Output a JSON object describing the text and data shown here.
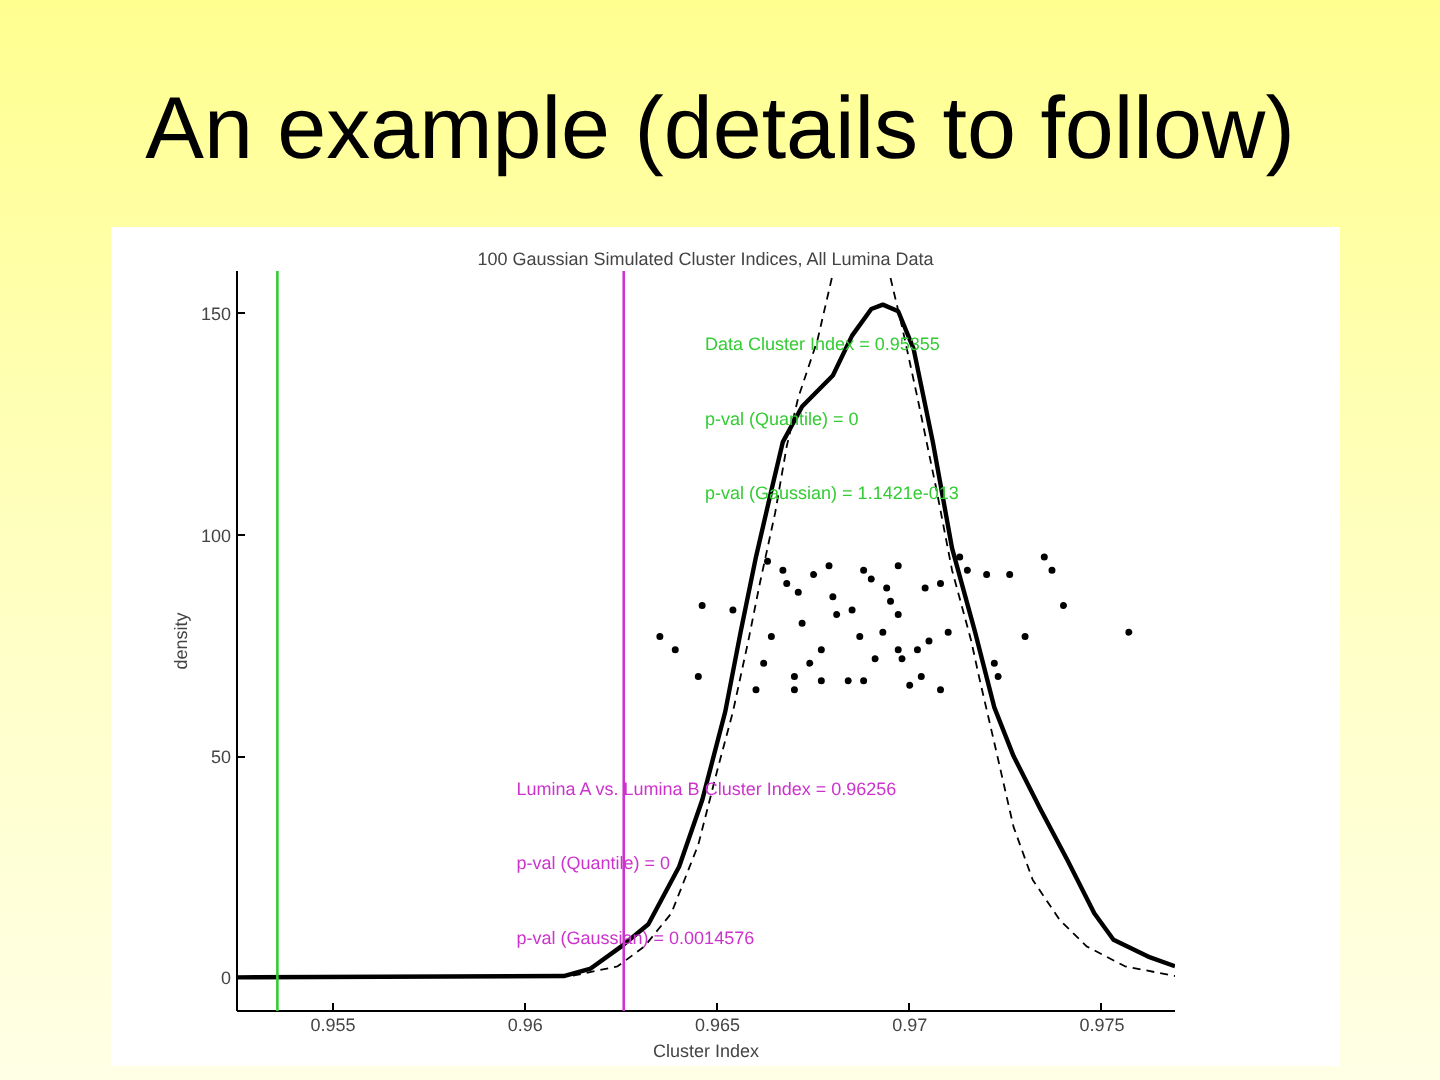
{
  "chart_data": {
    "type": "line",
    "title": "An example (details to follow)",
    "subtitle": "100 Gaussian Simulated Cluster Indices, All Lumina Data",
    "xlabel": "Cluster Index",
    "ylabel": "density",
    "xlim": [
      0.9525,
      0.9769
    ],
    "ylim": [
      -7.6,
      159.6
    ],
    "xticks": [
      0.955,
      0.96,
      0.965,
      0.97,
      0.975
    ],
    "yticks": [
      0,
      50,
      100,
      150
    ],
    "series": [
      {
        "color": "#000000",
        "line_style": "solid",
        "x": [
          0.9525,
          0.961,
          0.9617,
          0.9625,
          0.9632,
          0.964,
          0.9646,
          0.9652,
          0.9656,
          0.966,
          0.9664,
          0.9667,
          0.9672,
          0.968,
          0.9685,
          0.969,
          0.9693,
          0.9697,
          0.9701,
          0.9706,
          0.9711,
          0.9717,
          0.9722,
          0.9727,
          0.9734,
          0.9741,
          0.9748,
          0.9753,
          0.9762,
          0.9769
        ],
        "values": [
          0,
          0.3,
          2,
          7,
          12,
          25,
          40,
          60,
          78,
          95,
          110,
          121,
          129,
          136,
          145,
          151,
          152,
          150.5,
          142,
          121,
          97,
          78,
          61,
          50,
          38,
          26.5,
          14.5,
          8.5,
          4.7,
          2.5
        ]
      },
      {
        "color": "#000000",
        "line_style": "dashed",
        "x": [
          0.9525,
          0.9612,
          0.9624,
          0.9631,
          0.9638,
          0.9645,
          0.965,
          0.9654,
          0.9658,
          0.9661,
          0.9665,
          0.9668,
          0.9671,
          0.9676,
          0.968,
          0.9687,
          0.9695,
          0.9698,
          0.9702,
          0.9707,
          0.9711,
          0.9716,
          0.9718,
          0.9722,
          0.9727,
          0.9732,
          0.9739,
          0.9746,
          0.9756,
          0.9769
        ],
        "values": [
          0,
          0.3,
          2.5,
          7,
          14.5,
          30,
          47,
          60,
          76,
          89,
          105,
          120,
          131,
          144,
          159,
          null,
          158,
          147,
          131,
          110,
          92,
          76,
          68,
          53,
          34,
          22,
          13,
          7,
          2.5,
          0.3
        ]
      },
      {
        "type": "scatter",
        "color": "#000000",
        "marker": "circle",
        "x": [
          0.9635,
          0.9639,
          0.9645,
          0.9646,
          0.9654,
          0.966,
          0.9662,
          0.9663,
          0.9664,
          0.9667,
          0.9668,
          0.967,
          0.967,
          0.9671,
          0.9672,
          0.9674,
          0.9675,
          0.9677,
          0.9677,
          0.9679,
          0.968,
          0.9681,
          0.9684,
          0.9685,
          0.9687,
          0.9688,
          0.9688,
          0.969,
          0.9691,
          0.9693,
          0.9694,
          0.9695,
          0.9697,
          0.9697,
          0.9697,
          0.9698,
          0.97,
          0.9702,
          0.9703,
          0.9704,
          0.9705,
          0.9708,
          0.9708,
          0.971,
          0.9713,
          0.9715,
          0.972,
          0.9722,
          0.9723,
          0.9726,
          0.973,
          0.9735,
          0.9737,
          0.974,
          0.9757
        ],
        "values": [
          77,
          74,
          68,
          84,
          83,
          65,
          71,
          94,
          77,
          92,
          89,
          68,
          65,
          87,
          80,
          71,
          91,
          74,
          67,
          93,
          86,
          82,
          67,
          83,
          77,
          92,
          67,
          90,
          72,
          78,
          88,
          85,
          93,
          74,
          82,
          72,
          66,
          74,
          68,
          88,
          76,
          89,
          65,
          78,
          95,
          92,
          91,
          71,
          68,
          91,
          77,
          95,
          92,
          84,
          78
        ]
      }
    ],
    "ref_lines": [
      {
        "axis": "x",
        "value": 0.95355,
        "color": "#33cc33",
        "label": "Data Cluster Index = 0.95355\np-val (Quantile) = 0\np-val (Gaussian) = 1.1421e-013"
      },
      {
        "axis": "x",
        "value": 0.96256,
        "color": "#cc33cc",
        "label": "Lumina A vs. Lumina B Cluster Index = 0.96256\np-val (Quantile) = 0\np-val (Gaussian) = 0.0014576"
      }
    ]
  }
}
